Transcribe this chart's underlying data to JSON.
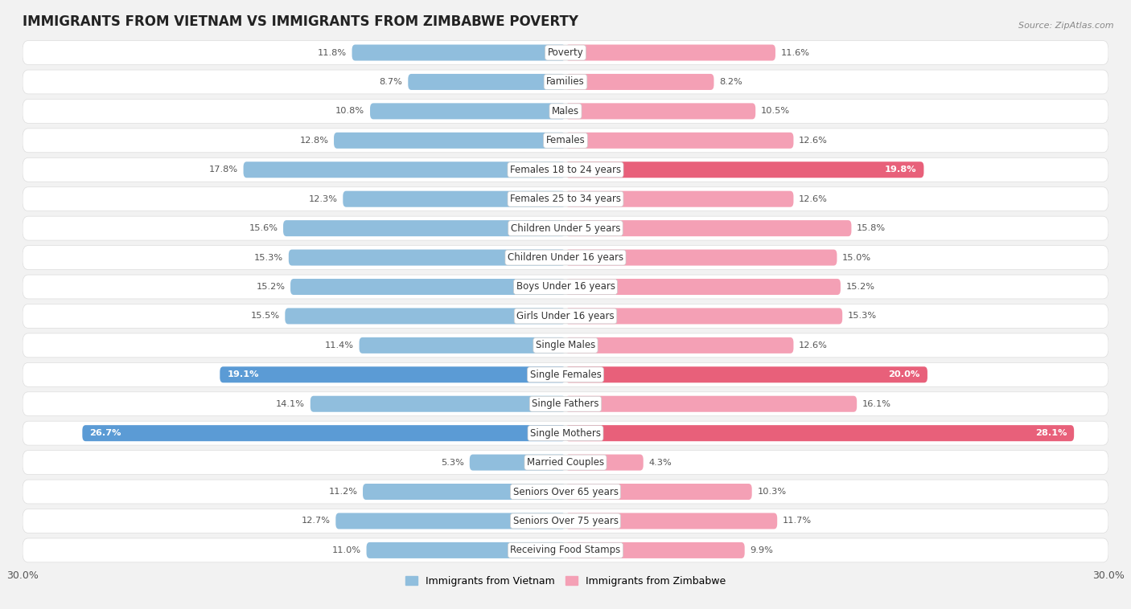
{
  "title": "IMMIGRANTS FROM VIETNAM VS IMMIGRANTS FROM ZIMBABWE POVERTY",
  "source": "Source: ZipAtlas.com",
  "categories": [
    "Poverty",
    "Families",
    "Males",
    "Females",
    "Females 18 to 24 years",
    "Females 25 to 34 years",
    "Children Under 5 years",
    "Children Under 16 years",
    "Boys Under 16 years",
    "Girls Under 16 years",
    "Single Males",
    "Single Females",
    "Single Fathers",
    "Single Mothers",
    "Married Couples",
    "Seniors Over 65 years",
    "Seniors Over 75 years",
    "Receiving Food Stamps"
  ],
  "vietnam_values": [
    11.8,
    8.7,
    10.8,
    12.8,
    17.8,
    12.3,
    15.6,
    15.3,
    15.2,
    15.5,
    11.4,
    19.1,
    14.1,
    26.7,
    5.3,
    11.2,
    12.7,
    11.0
  ],
  "zimbabwe_values": [
    11.6,
    8.2,
    10.5,
    12.6,
    19.8,
    12.6,
    15.8,
    15.0,
    15.2,
    15.3,
    12.6,
    20.0,
    16.1,
    28.1,
    4.3,
    10.3,
    11.7,
    9.9
  ],
  "vietnam_color": "#90bedd",
  "zimbabwe_color": "#f4a0b5",
  "vietnam_highlight_indices": [
    11,
    13
  ],
  "zimbabwe_highlight_indices": [
    4,
    11,
    13
  ],
  "vietnam_highlight_color": "#5b9bd5",
  "zimbabwe_highlight_color": "#e8607a",
  "axis_max": 30.0,
  "background_color": "#f2f2f2",
  "row_bg_color": "#ffffff",
  "row_border_color": "#dddddd",
  "legend_vietnam": "Immigrants from Vietnam",
  "legend_zimbabwe": "Immigrants from Zimbabwe",
  "title_fontsize": 12,
  "label_fontsize": 8.5,
  "value_fontsize": 8.2
}
